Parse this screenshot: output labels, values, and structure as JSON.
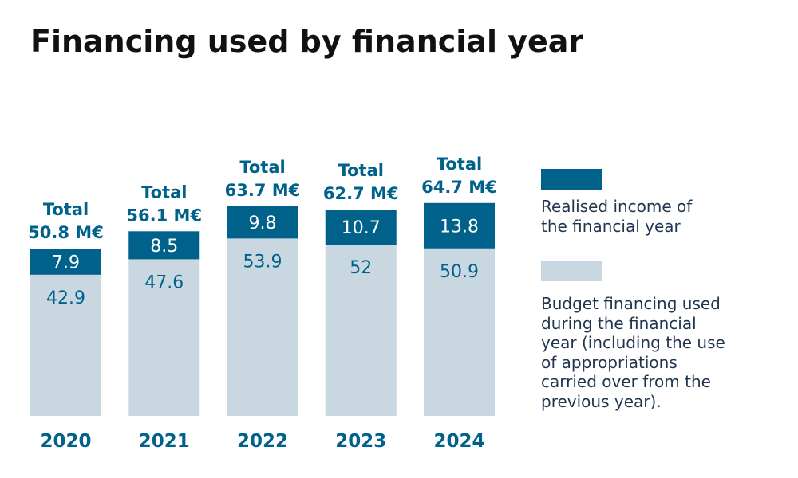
{
  "title": "Financing used by financial year",
  "colors": {
    "dark": "#00628b",
    "light": "#c9d8e0",
    "total_text": "#00628b",
    "value_on_dark": "#ffffff",
    "value_on_light": "#00628b",
    "legend_text": "#1f3550"
  },
  "chart_data": {
    "type": "bar",
    "stacked": true,
    "categories": [
      "2020",
      "2021",
      "2022",
      "2023",
      "2024"
    ],
    "series": [
      {
        "name": "Budget financing used during the financial year (including the use of appropriations carried over from the previous year).",
        "values": [
          42.9,
          47.6,
          53.9,
          52,
          50.9
        ],
        "labels": [
          "42.9",
          "47.6",
          "53.9",
          "52",
          "50.9"
        ]
      },
      {
        "name": "Realised income of the financial year",
        "values": [
          7.9,
          8.5,
          9.8,
          10.7,
          13.8
        ],
        "labels": [
          "7.9",
          "8.5",
          "9.8",
          "10.7",
          "13.8"
        ]
      }
    ],
    "totals": [
      {
        "line1": "Total",
        "line2": "50.8 M€"
      },
      {
        "line1": "Total",
        "line2": "56.1 M€"
      },
      {
        "line1": "Total",
        "line2": "63.7 M€"
      },
      {
        "line1": "Total",
        "line2": "62.7 M€"
      },
      {
        "line1": "Total",
        "line2": "64.7 M€"
      }
    ]
  },
  "legend": {
    "items": [
      {
        "label_lines": [
          "Realised income of",
          "the financial year"
        ]
      },
      {
        "label_lines": [
          "Budget financing used",
          "during the financial",
          "year (including the use",
          "of appropriations",
          "carried over from the",
          "previous year)."
        ]
      }
    ]
  }
}
